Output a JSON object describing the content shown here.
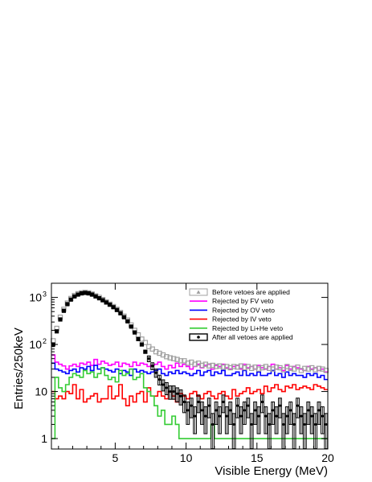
{
  "chart_data": {
    "type": "histogram",
    "xlabel": "Visible Energy (MeV)",
    "ylabel": "Entries/250keV",
    "xlim": [
      0.5,
      20
    ],
    "ylim": [
      0.6,
      2000
    ],
    "log_y": true,
    "grid": false,
    "legend_position": "top-right",
    "bin_width": 0.25,
    "x_ticks": [
      {
        "value": 5,
        "label": "5"
      },
      {
        "value": 10,
        "label": "10"
      },
      {
        "value": 15,
        "label": "15"
      },
      {
        "value": 20,
        "label": "20"
      }
    ],
    "y_ticks": [
      {
        "value": 1,
        "base": "1",
        "exp": ""
      },
      {
        "value": 10,
        "base": "10",
        "exp": ""
      },
      {
        "value": 100,
        "base": "10",
        "exp": "2"
      },
      {
        "value": 1000,
        "base": "10",
        "exp": "3"
      }
    ],
    "series": [
      {
        "name": "Before vetoes are applied",
        "style": "markers-triangle",
        "color": "#a0a0a0",
        "x": [
          0.625,
          0.875,
          1.125,
          1.375,
          1.625,
          1.875,
          2.125,
          2.375,
          2.625,
          2.875,
          3.125,
          3.375,
          3.625,
          3.875,
          4.125,
          4.375,
          4.625,
          4.875,
          5.125,
          5.375,
          5.625,
          5.875,
          6.125,
          6.375,
          6.625,
          6.875,
          7.125,
          7.375,
          7.625,
          7.875,
          8.125,
          8.375,
          8.625,
          8.875,
          9.125,
          9.375,
          9.625,
          9.875,
          10.125,
          10.375,
          10.625,
          10.875,
          11.125,
          11.375,
          11.625,
          11.875,
          12.125,
          12.375,
          12.625,
          12.875,
          13.125,
          13.375,
          13.625,
          13.875,
          14.125,
          14.375,
          14.625,
          14.875,
          15.125,
          15.375,
          15.625,
          15.875,
          16.125,
          16.375,
          16.625,
          16.875,
          17.125,
          17.375,
          17.625,
          17.875,
          18.125,
          18.375,
          18.625,
          18.875,
          19.125,
          19.375,
          19.625,
          19.875
        ],
        "values": [
          120,
          220,
          380,
          560,
          760,
          950,
          1100,
          1200,
          1250,
          1280,
          1250,
          1180,
          1080,
          1000,
          900,
          800,
          720,
          640,
          560,
          480,
          400,
          330,
          260,
          200,
          160,
          130,
          110,
          90,
          80,
          70,
          65,
          60,
          55,
          52,
          50,
          48,
          45,
          45,
          40,
          42,
          38,
          40,
          36,
          38,
          35,
          36,
          34,
          35,
          33,
          34,
          32,
          34,
          33,
          35,
          32,
          34,
          31,
          33,
          30,
          32,
          34,
          31,
          30,
          33,
          32,
          29,
          34,
          31,
          30,
          33,
          28,
          31,
          30,
          32,
          29,
          31,
          30,
          28
        ]
      },
      {
        "name": "Rejected by FV veto",
        "style": "step",
        "color": "#ff00ff",
        "values": [
          60,
          42,
          38,
          35,
          30,
          35,
          38,
          34,
          40,
          38,
          42,
          36,
          48,
          38,
          44,
          40,
          36,
          38,
          42,
          34,
          40,
          38,
          34,
          42,
          36,
          40,
          38,
          34,
          36,
          38,
          42,
          34,
          30,
          36,
          32,
          40,
          34,
          38,
          34,
          30,
          34,
          38,
          32,
          36,
          38,
          30,
          36,
          34,
          38,
          32,
          30,
          34,
          36,
          30,
          38,
          32,
          34,
          30,
          36,
          32,
          30,
          34,
          38,
          30,
          32,
          28,
          36,
          30,
          34,
          32,
          30,
          28,
          34,
          30,
          32,
          28,
          30,
          26
        ]
      },
      {
        "name": "Rejected by OV veto",
        "style": "step",
        "color": "#0000ff",
        "values": [
          40,
          30,
          28,
          26,
          24,
          28,
          30,
          26,
          32,
          30,
          34,
          28,
          36,
          30,
          32,
          30,
          28,
          26,
          30,
          24,
          28,
          26,
          22,
          30,
          26,
          28,
          26,
          24,
          26,
          28,
          30,
          24,
          22,
          26,
          24,
          28,
          24,
          26,
          24,
          22,
          24,
          28,
          22,
          26,
          28,
          22,
          26,
          24,
          28,
          22,
          22,
          24,
          26,
          22,
          28,
          22,
          24,
          22,
          26,
          22,
          22,
          24,
          28,
          22,
          24,
          20,
          26,
          22,
          24,
          22,
          22,
          20,
          24,
          22,
          24,
          20,
          22,
          18
        ]
      },
      {
        "name": "Rejected by IV veto",
        "style": "step",
        "color": "#ff0000",
        "values": [
          10,
          7,
          8,
          7,
          10,
          9,
          14,
          7,
          11,
          6,
          7,
          8,
          9,
          6,
          7,
          7,
          13,
          7,
          8,
          14,
          7,
          5,
          8,
          6,
          9,
          10,
          6,
          12,
          8,
          8,
          10,
          8,
          7,
          10,
          8,
          6,
          9,
          8,
          7,
          9,
          10,
          8,
          7,
          9,
          10,
          8,
          7,
          9,
          10,
          8,
          7,
          11,
          8,
          9,
          10,
          12,
          9,
          10,
          11,
          9,
          13,
          10,
          12,
          14,
          11,
          10,
          13,
          12,
          14,
          11,
          12,
          13,
          12,
          11,
          14,
          13,
          12,
          11
        ]
      },
      {
        "name": "Rejected by Li+He veto",
        "style": "step",
        "color": "#33cc33",
        "values": [
          1,
          20,
          12,
          10,
          14,
          20,
          24,
          22,
          20,
          28,
          24,
          26,
          20,
          24,
          32,
          22,
          18,
          20,
          16,
          28,
          22,
          24,
          30,
          18,
          20,
          24,
          12,
          10,
          8,
          5,
          3,
          4,
          2,
          2,
          3,
          2,
          1,
          1,
          1,
          1,
          1,
          1,
          1,
          1,
          1,
          2,
          1,
          1,
          1,
          1,
          1,
          1,
          1,
          1,
          1,
          1,
          1,
          1,
          1,
          1,
          1,
          1,
          1,
          1,
          1,
          1,
          1,
          1,
          1,
          1,
          1,
          1,
          1,
          1,
          1,
          1,
          1,
          1
        ]
      },
      {
        "name": "After all vetoes are applied",
        "style": "markers-boxerrors",
        "color": "#000000",
        "values": [
          100,
          190,
          340,
          520,
          720,
          900,
          1050,
          1150,
          1220,
          1250,
          1220,
          1150,
          1050,
          960,
          870,
          780,
          700,
          620,
          540,
          460,
          380,
          310,
          240,
          180,
          130,
          100,
          70,
          50,
          35,
          25,
          18,
          14,
          12,
          10,
          10,
          9,
          8,
          6,
          4,
          5,
          3,
          6,
          4,
          3,
          5,
          2,
          4,
          3,
          6,
          3,
          4,
          2,
          5,
          3,
          4,
          5,
          2,
          4,
          3,
          6,
          3,
          2,
          4,
          3,
          5,
          2,
          3,
          4,
          2,
          5,
          3,
          2,
          4,
          3,
          2,
          4,
          3,
          2
        ]
      }
    ]
  }
}
